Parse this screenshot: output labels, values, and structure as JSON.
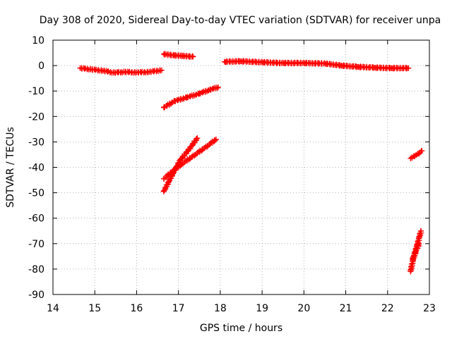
{
  "chart_data": {
    "type": "scatter",
    "title": "Day 308 of 2020, Sidereal Day-to-day VTEC variation (SDTVAR) for receiver unpa",
    "xlabel": "GPS time / hours",
    "ylabel": "SDTVAR / TECUs",
    "xlim": [
      14,
      23
    ],
    "ylim": [
      -90,
      10
    ],
    "xticks": [
      14,
      15,
      16,
      17,
      18,
      19,
      20,
      21,
      22,
      23
    ],
    "yticks": [
      10,
      0,
      -10,
      -20,
      -30,
      -40,
      -50,
      -60,
      -70,
      -80,
      -90
    ],
    "grid": true,
    "marker": "+",
    "series_color": "#ff0000",
    "series": [
      {
        "x": [
          14.65,
          14.9,
          15.2,
          15.45,
          15.7,
          16.0,
          16.3,
          16.6
        ],
        "y": [
          -1.0,
          -1.5,
          -2.0,
          -2.8,
          -2.5,
          -2.7,
          -2.5,
          -1.8
        ]
      },
      {
        "x": [
          16.65,
          16.9,
          17.1,
          17.35
        ],
        "y": [
          4.5,
          4.0,
          3.8,
          3.5
        ]
      },
      {
        "x": [
          16.65,
          16.9,
          17.2,
          17.5,
          17.75,
          17.95
        ],
        "y": [
          -16.5,
          -14.0,
          -12.5,
          -11.0,
          -9.5,
          -8.5
        ]
      },
      {
        "x": [
          16.65,
          16.85,
          17.05,
          17.3,
          17.45
        ],
        "y": [
          -49.5,
          -43.0,
          -37.0,
          -32.0,
          -28.5
        ]
      },
      {
        "x": [
          16.65,
          16.9,
          17.1,
          17.4,
          17.7,
          17.9
        ],
        "y": [
          -44.5,
          -41.0,
          -38.5,
          -35.0,
          -31.5,
          -29.0
        ]
      },
      {
        "x": [
          18.1,
          18.5,
          19.0,
          19.5,
          20.0,
          20.5,
          20.9,
          21.3,
          21.7,
          22.1,
          22.5
        ],
        "y": [
          1.5,
          1.7,
          1.3,
          1.0,
          1.0,
          0.8,
          0.0,
          -0.5,
          -0.8,
          -1.0,
          -1.0
        ]
      },
      {
        "x": [
          22.55,
          22.65,
          22.75,
          22.82
        ],
        "y": [
          -36.5,
          -35.5,
          -34.5,
          -33.5
        ]
      },
      {
        "x": [
          22.55,
          22.6,
          22.65,
          22.7,
          22.75,
          22.8
        ],
        "y": [
          -81.0,
          -77.0,
          -74.0,
          -71.0,
          -68.0,
          -65.0
        ]
      },
      {
        "x": [
          22.6,
          22.68,
          22.75
        ],
        "y": [
          -76.0,
          -73.0,
          -70.0
        ]
      }
    ]
  }
}
